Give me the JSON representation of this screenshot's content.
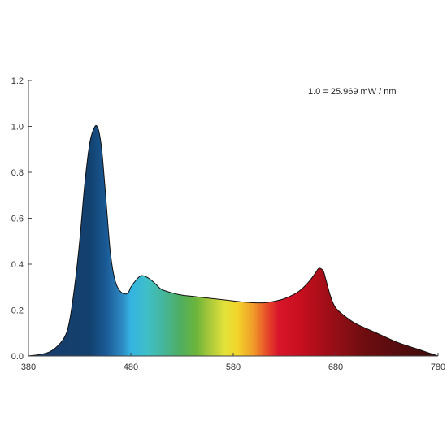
{
  "chart_data": {
    "type": "area",
    "title": "",
    "xlabel": "",
    "ylabel": "",
    "annotation": "1.0 = 25.969 mW / nm",
    "xlim": [
      380,
      780
    ],
    "ylim": [
      0,
      1.2
    ],
    "x_ticks": [
      "380",
      "480",
      "580",
      "680",
      "780"
    ],
    "y_ticks": [
      "0.0",
      "0.2",
      "0.4",
      "0.6",
      "0.8",
      "1.0",
      "1.2"
    ],
    "grid": false,
    "fill": "visible-spectrum-gradient",
    "series": [
      {
        "x": [
          380,
          395,
          405,
          415,
          420,
          425,
          430,
          435,
          440,
          445,
          448,
          450,
          452,
          455,
          458,
          460,
          463,
          466,
          470,
          475,
          478,
          480,
          485,
          490,
          495,
          500,
          505,
          510,
          520,
          530,
          540,
          550,
          560,
          570,
          580,
          590,
          600,
          610,
          620,
          630,
          640,
          645,
          650,
          655,
          660,
          663,
          665,
          668,
          670,
          675,
          680,
          690,
          700,
          720,
          740,
          760,
          780
        ],
        "values": [
          0.0,
          0.01,
          0.03,
          0.08,
          0.15,
          0.3,
          0.5,
          0.75,
          0.93,
          1.0,
          0.99,
          0.95,
          0.88,
          0.72,
          0.55,
          0.45,
          0.36,
          0.31,
          0.28,
          0.27,
          0.28,
          0.3,
          0.33,
          0.35,
          0.345,
          0.33,
          0.31,
          0.29,
          0.275,
          0.265,
          0.26,
          0.255,
          0.25,
          0.245,
          0.24,
          0.235,
          0.232,
          0.232,
          0.238,
          0.25,
          0.27,
          0.285,
          0.305,
          0.33,
          0.36,
          0.38,
          0.382,
          0.37,
          0.34,
          0.26,
          0.21,
          0.17,
          0.14,
          0.1,
          0.06,
          0.03,
          0.0
        ]
      }
    ],
    "colors": {
      "outline": "#111111",
      "axis": "#444444"
    }
  }
}
